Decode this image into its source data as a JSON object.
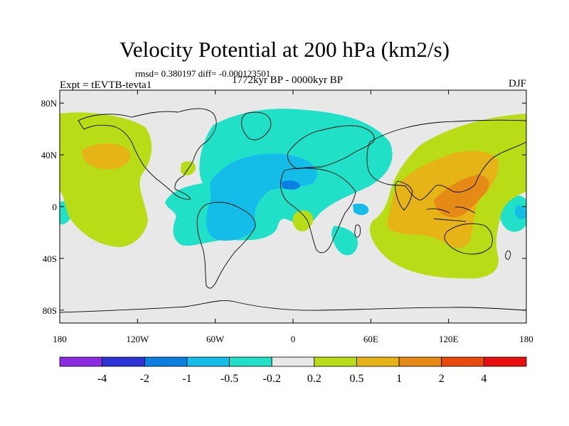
{
  "title": "Velocity Potential at 200 hPa (km2/s)",
  "stats": "rmsd= 0.380197 diff= -0.000123501",
  "left_label": "Expt = tEVTB-tevta1",
  "center_label": "1772kyr BP - 0000kyr BP",
  "right_label": "DJF",
  "lat_ticks": [
    {
      "value": 80,
      "label": "80N"
    },
    {
      "value": 40,
      "label": "40N"
    },
    {
      "value": 0,
      "label": "0"
    },
    {
      "value": -40,
      "label": "40S"
    },
    {
      "value": -80,
      "label": "80S"
    }
  ],
  "lon_ticks": [
    {
      "value": -180,
      "label": "180"
    },
    {
      "value": -120,
      "label": "120W"
    },
    {
      "value": -60,
      "label": "60W"
    },
    {
      "value": 0,
      "label": "0"
    },
    {
      "value": 60,
      "label": "60E"
    },
    {
      "value": 120,
      "label": "120E"
    },
    {
      "value": 180,
      "label": "180"
    }
  ],
  "colorbar": {
    "colors": [
      "#8a2be2",
      "#2e33d6",
      "#0a7fe0",
      "#14bde8",
      "#20e0c8",
      "#e8e8e8",
      "#b8dc16",
      "#e6b416",
      "#e68a16",
      "#e84a0e",
      "#e80f0f"
    ],
    "labels": [
      "-4",
      "-2",
      "-1",
      "-0.5",
      "-0.2",
      "0.2",
      "0.5",
      "1",
      "2",
      "4"
    ]
  },
  "colors": {
    "land_outline": "#000000",
    "background": "#e8e8e8"
  }
}
